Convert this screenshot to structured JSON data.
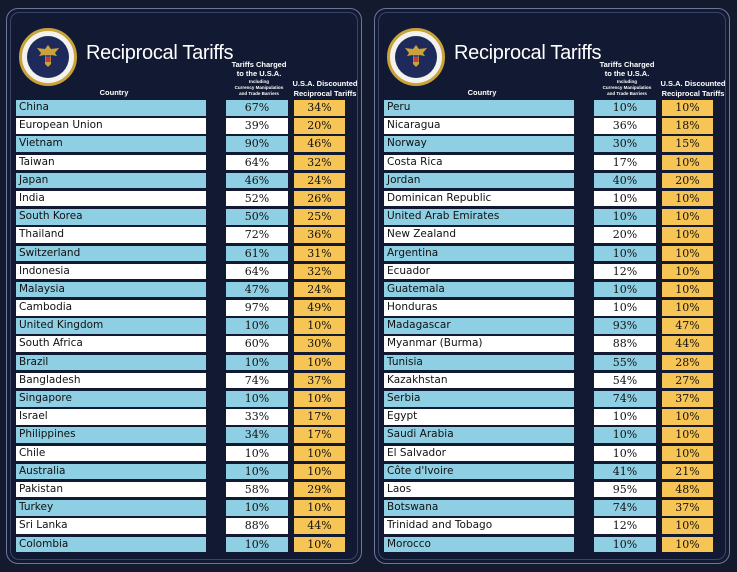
{
  "boards": [
    {
      "title": "Reciprocal Tariffs",
      "headers": {
        "country": "Country",
        "charged": "Tariffs Charged",
        "charged2": "to the U.S.A.",
        "charged_sub1": "Including",
        "charged_sub2": "Currency Manipulation",
        "charged_sub3": "and Trade Barriers",
        "discounted": "U.S.A. Discounted",
        "discounted2": "Reciprocal Tariffs"
      },
      "rows": [
        {
          "country": "China",
          "charged": "67%",
          "discounted": "34%"
        },
        {
          "country": "European Union",
          "charged": "39%",
          "discounted": "20%"
        },
        {
          "country": "Vietnam",
          "charged": "90%",
          "discounted": "46%"
        },
        {
          "country": "Taiwan",
          "charged": "64%",
          "discounted": "32%"
        },
        {
          "country": "Japan",
          "charged": "46%",
          "discounted": "24%"
        },
        {
          "country": "India",
          "charged": "52%",
          "discounted": "26%"
        },
        {
          "country": "South Korea",
          "charged": "50%",
          "discounted": "25%"
        },
        {
          "country": "Thailand",
          "charged": "72%",
          "discounted": "36%"
        },
        {
          "country": "Switzerland",
          "charged": "61%",
          "discounted": "31%"
        },
        {
          "country": "Indonesia",
          "charged": "64%",
          "discounted": "32%"
        },
        {
          "country": "Malaysia",
          "charged": "47%",
          "discounted": "24%"
        },
        {
          "country": "Cambodia",
          "charged": "97%",
          "discounted": "49%"
        },
        {
          "country": "United Kingdom",
          "charged": "10%",
          "discounted": "10%"
        },
        {
          "country": "South Africa",
          "charged": "60%",
          "discounted": "30%"
        },
        {
          "country": "Brazil",
          "charged": "10%",
          "discounted": "10%"
        },
        {
          "country": "Bangladesh",
          "charged": "74%",
          "discounted": "37%"
        },
        {
          "country": "Singapore",
          "charged": "10%",
          "discounted": "10%"
        },
        {
          "country": "Israel",
          "charged": "33%",
          "discounted": "17%"
        },
        {
          "country": "Philippines",
          "charged": "34%",
          "discounted": "17%"
        },
        {
          "country": "Chile",
          "charged": "10%",
          "discounted": "10%"
        },
        {
          "country": "Australia",
          "charged": "10%",
          "discounted": "10%"
        },
        {
          "country": "Pakistan",
          "charged": "58%",
          "discounted": "29%"
        },
        {
          "country": "Turkey",
          "charged": "10%",
          "discounted": "10%"
        },
        {
          "country": "Sri Lanka",
          "charged": "88%",
          "discounted": "44%"
        },
        {
          "country": "Colombia",
          "charged": "10%",
          "discounted": "10%"
        }
      ]
    },
    {
      "title": "Reciprocal Tariffs",
      "headers": {
        "country": "Country",
        "charged": "Tariffs Charged",
        "charged2": "to the U.S.A.",
        "charged_sub1": "Including",
        "charged_sub2": "Currency Manipulation",
        "charged_sub3": "and Trade Barriers",
        "discounted": "U.S.A. Discounted",
        "discounted2": "Reciprocal Tariffs"
      },
      "rows": [
        {
          "country": "Peru",
          "charged": "10%",
          "discounted": "10%"
        },
        {
          "country": "Nicaragua",
          "charged": "36%",
          "discounted": "18%"
        },
        {
          "country": "Norway",
          "charged": "30%",
          "discounted": "15%"
        },
        {
          "country": "Costa Rica",
          "charged": "17%",
          "discounted": "10%"
        },
        {
          "country": "Jordan",
          "charged": "40%",
          "discounted": "20%"
        },
        {
          "country": "Dominican Republic",
          "charged": "10%",
          "discounted": "10%"
        },
        {
          "country": "United Arab Emirates",
          "charged": "10%",
          "discounted": "10%"
        },
        {
          "country": "New Zealand",
          "charged": "20%",
          "discounted": "10%"
        },
        {
          "country": "Argentina",
          "charged": "10%",
          "discounted": "10%"
        },
        {
          "country": "Ecuador",
          "charged": "12%",
          "discounted": "10%"
        },
        {
          "country": "Guatemala",
          "charged": "10%",
          "discounted": "10%"
        },
        {
          "country": "Honduras",
          "charged": "10%",
          "discounted": "10%"
        },
        {
          "country": "Madagascar",
          "charged": "93%",
          "discounted": "47%"
        },
        {
          "country": "Myanmar (Burma)",
          "charged": "88%",
          "discounted": "44%"
        },
        {
          "country": "Tunisia",
          "charged": "55%",
          "discounted": "28%"
        },
        {
          "country": "Kazakhstan",
          "charged": "54%",
          "discounted": "27%"
        },
        {
          "country": "Serbia",
          "charged": "74%",
          "discounted": "37%"
        },
        {
          "country": "Egypt",
          "charged": "10%",
          "discounted": "10%"
        },
        {
          "country": "Saudi Arabia",
          "charged": "10%",
          "discounted": "10%"
        },
        {
          "country": "El Salvador",
          "charged": "10%",
          "discounted": "10%"
        },
        {
          "country": "Côte d'Ivoire",
          "charged": "41%",
          "discounted": "21%"
        },
        {
          "country": "Laos",
          "charged": "95%",
          "discounted": "48%"
        },
        {
          "country": "Botswana",
          "charged": "74%",
          "discounted": "37%"
        },
        {
          "country": "Trinidad and Tobago",
          "charged": "12%",
          "discounted": "10%"
        },
        {
          "country": "Morocco",
          "charged": "10%",
          "discounted": "10%"
        }
      ]
    }
  ],
  "colors": {
    "background": "#131a2e",
    "row_blue": "#8fcfe3",
    "row_white": "#ffffff",
    "discount_yellow": "#f6c556"
  },
  "icons": {
    "seal": "presidential-seal-icon"
  }
}
